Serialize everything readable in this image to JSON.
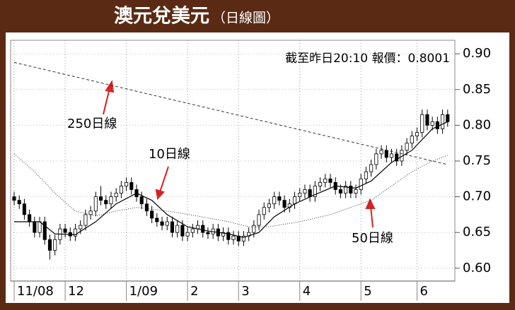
{
  "chart_data": {
    "type": "candlestick",
    "title": "澳元兌美元",
    "subtitle": "（日線圖）",
    "annotation": "截至昨日20:10 報價：0.8001",
    "xlim": [
      0,
      86
    ],
    "xticks": [
      {
        "value": 0,
        "label": "11/08"
      },
      {
        "value": 10,
        "label": "12"
      },
      {
        "value": 22,
        "label": "1/09"
      },
      {
        "value": 34,
        "label": "2"
      },
      {
        "value": 44,
        "label": "3"
      },
      {
        "value": 56,
        "label": "4"
      },
      {
        "value": 68,
        "label": "5"
      },
      {
        "value": 79,
        "label": "6"
      }
    ],
    "ylim": [
      0.582,
      0.919
    ],
    "yticks": [
      {
        "value": 0.6,
        "label": "0.60"
      },
      {
        "value": 0.65,
        "label": "0.65"
      },
      {
        "value": 0.7,
        "label": "0.70"
      },
      {
        "value": 0.75,
        "label": "0.75"
      },
      {
        "value": 0.8,
        "label": "0.80"
      },
      {
        "value": 0.85,
        "label": "0.85"
      },
      {
        "value": 0.9,
        "label": "0.90"
      }
    ],
    "grid": true,
    "candles": {
      "open": [
        0.7,
        0.695,
        0.69,
        0.675,
        0.665,
        0.65,
        0.665,
        0.64,
        0.625,
        0.64,
        0.655,
        0.65,
        0.645,
        0.655,
        0.66,
        0.675,
        0.68,
        0.7,
        0.695,
        0.69,
        0.7,
        0.705,
        0.715,
        0.72,
        0.71,
        0.7,
        0.69,
        0.68,
        0.67,
        0.665,
        0.66,
        0.665,
        0.65,
        0.66,
        0.645,
        0.65,
        0.655,
        0.66,
        0.65,
        0.648,
        0.655,
        0.645,
        0.65,
        0.64,
        0.645,
        0.638,
        0.645,
        0.65,
        0.66,
        0.675,
        0.685,
        0.69,
        0.7,
        0.695,
        0.685,
        0.69,
        0.7,
        0.705,
        0.71,
        0.7,
        0.715,
        0.72,
        0.725,
        0.72,
        0.71,
        0.705,
        0.715,
        0.705,
        0.71,
        0.725,
        0.735,
        0.745,
        0.76,
        0.765,
        0.755,
        0.76,
        0.75,
        0.765,
        0.775,
        0.785,
        0.79,
        0.815,
        0.8,
        0.805,
        0.795,
        0.815
      ],
      "high": [
        0.707,
        0.702,
        0.697,
        0.682,
        0.672,
        0.672,
        0.672,
        0.647,
        0.647,
        0.662,
        0.662,
        0.657,
        0.662,
        0.667,
        0.682,
        0.687,
        0.707,
        0.715,
        0.702,
        0.707,
        0.712,
        0.722,
        0.727,
        0.727,
        0.717,
        0.707,
        0.697,
        0.687,
        0.677,
        0.672,
        0.672,
        0.672,
        0.667,
        0.667,
        0.657,
        0.662,
        0.667,
        0.667,
        0.657,
        0.662,
        0.662,
        0.657,
        0.657,
        0.652,
        0.652,
        0.652,
        0.657,
        0.667,
        0.682,
        0.692,
        0.697,
        0.707,
        0.707,
        0.702,
        0.697,
        0.707,
        0.712,
        0.717,
        0.717,
        0.722,
        0.727,
        0.732,
        0.732,
        0.727,
        0.717,
        0.722,
        0.722,
        0.717,
        0.732,
        0.742,
        0.752,
        0.767,
        0.772,
        0.772,
        0.767,
        0.767,
        0.772,
        0.782,
        0.792,
        0.797,
        0.822,
        0.822,
        0.812,
        0.812,
        0.822,
        0.822
      ],
      "low": [
        0.688,
        0.683,
        0.668,
        0.658,
        0.643,
        0.643,
        0.633,
        0.612,
        0.618,
        0.633,
        0.643,
        0.638,
        0.638,
        0.648,
        0.653,
        0.668,
        0.673,
        0.688,
        0.683,
        0.683,
        0.693,
        0.698,
        0.708,
        0.703,
        0.693,
        0.683,
        0.673,
        0.663,
        0.658,
        0.653,
        0.653,
        0.643,
        0.643,
        0.638,
        0.638,
        0.643,
        0.648,
        0.643,
        0.641,
        0.641,
        0.638,
        0.638,
        0.633,
        0.633,
        0.631,
        0.631,
        0.638,
        0.643,
        0.653,
        0.668,
        0.678,
        0.683,
        0.688,
        0.678,
        0.678,
        0.683,
        0.693,
        0.698,
        0.693,
        0.693,
        0.708,
        0.713,
        0.713,
        0.703,
        0.698,
        0.698,
        0.698,
        0.698,
        0.703,
        0.718,
        0.728,
        0.738,
        0.753,
        0.748,
        0.748,
        0.743,
        0.743,
        0.758,
        0.768,
        0.778,
        0.783,
        0.793,
        0.793,
        0.788,
        0.788,
        0.798
      ],
      "close": [
        0.695,
        0.69,
        0.675,
        0.665,
        0.65,
        0.665,
        0.64,
        0.625,
        0.64,
        0.655,
        0.65,
        0.645,
        0.655,
        0.66,
        0.675,
        0.68,
        0.7,
        0.695,
        0.69,
        0.7,
        0.705,
        0.715,
        0.72,
        0.71,
        0.7,
        0.69,
        0.68,
        0.67,
        0.665,
        0.66,
        0.665,
        0.65,
        0.66,
        0.645,
        0.65,
        0.655,
        0.66,
        0.65,
        0.648,
        0.655,
        0.645,
        0.65,
        0.64,
        0.645,
        0.638,
        0.645,
        0.65,
        0.66,
        0.675,
        0.685,
        0.69,
        0.7,
        0.695,
        0.685,
        0.69,
        0.7,
        0.705,
        0.71,
        0.7,
        0.715,
        0.72,
        0.725,
        0.72,
        0.71,
        0.705,
        0.715,
        0.705,
        0.71,
        0.725,
        0.735,
        0.745,
        0.76,
        0.765,
        0.755,
        0.76,
        0.75,
        0.765,
        0.775,
        0.785,
        0.79,
        0.815,
        0.8,
        0.805,
        0.795,
        0.815,
        0.805
      ]
    },
    "series": [
      {
        "name": "250日線",
        "color": "#333333",
        "style": "dashed",
        "x": [
          0,
          85
        ],
        "values": [
          0.888,
          0.745
        ]
      },
      {
        "name": "10日線",
        "color": "#000000",
        "style": "solid",
        "x": [
          0,
          5,
          8,
          12,
          16,
          20,
          24,
          27,
          30,
          34,
          38,
          42,
          45,
          48,
          51,
          55,
          59,
          63,
          67,
          70,
          74,
          78,
          82,
          85
        ],
        "values": [
          0.665,
          0.665,
          0.648,
          0.647,
          0.665,
          0.69,
          0.705,
          0.695,
          0.675,
          0.658,
          0.652,
          0.648,
          0.643,
          0.65,
          0.672,
          0.69,
          0.703,
          0.715,
          0.712,
          0.722,
          0.748,
          0.765,
          0.795,
          0.805
        ]
      },
      {
        "name": "50日線",
        "color": "#333333",
        "style": "dotted",
        "x": [
          0,
          4,
          8,
          12,
          16,
          20,
          24,
          30,
          36,
          42,
          46,
          50,
          56,
          62,
          66,
          70,
          74,
          78,
          82,
          85
        ],
        "values": [
          0.76,
          0.735,
          0.705,
          0.68,
          0.673,
          0.68,
          0.685,
          0.68,
          0.673,
          0.665,
          0.658,
          0.658,
          0.665,
          0.675,
          0.685,
          0.695,
          0.715,
          0.735,
          0.75,
          0.758
        ]
      }
    ]
  }
}
